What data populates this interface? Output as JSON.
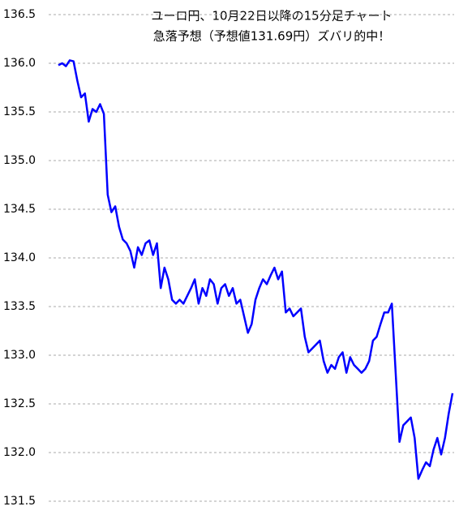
{
  "chart_data": {
    "type": "line",
    "title": [
      "ユーロ円、10月22日以降の15分足チャート",
      "急落予想（予想値131.69円）ズバリ的中！"
    ],
    "color": "#0000ff",
    "values": [
      135.98,
      136.0,
      135.97,
      136.03,
      136.02,
      135.82,
      135.65,
      135.69,
      135.4,
      135.53,
      135.5,
      135.58,
      135.48,
      134.65,
      134.47,
      134.53,
      134.32,
      134.19,
      134.15,
      134.07,
      133.9,
      134.11,
      134.03,
      134.15,
      134.18,
      134.03,
      134.15,
      133.69,
      133.9,
      133.78,
      133.57,
      133.53,
      133.57,
      133.53,
      133.61,
      133.69,
      133.78,
      133.53,
      133.69,
      133.61,
      133.78,
      133.73,
      133.53,
      133.69,
      133.73,
      133.61,
      133.69,
      133.53,
      133.57,
      133.4,
      133.23,
      133.32,
      133.57,
      133.69,
      133.78,
      133.73,
      133.82,
      133.9,
      133.78,
      133.86,
      133.44,
      133.48,
      133.4,
      133.44,
      133.48,
      133.19,
      133.03,
      133.07,
      133.11,
      133.15,
      132.94,
      132.82,
      132.9,
      132.86,
      132.98,
      133.03,
      132.82,
      132.98,
      132.9,
      132.86,
      132.82,
      132.86,
      132.94,
      133.15,
      133.19,
      133.32,
      133.44,
      133.44,
      133.53,
      132.82,
      132.11,
      132.28,
      132.32,
      132.36,
      132.15,
      131.73,
      131.82,
      131.9,
      131.86,
      132.03,
      132.15,
      131.98,
      132.15,
      132.4,
      132.61
    ],
    "ylim": [
      131.5,
      136.5
    ],
    "yticks": [
      136.5,
      {
        "value": 136,
        "label": "136.0"
      },
      135.5,
      {
        "value": 135,
        "label": "135.0"
      },
      134.5,
      {
        "value": 134,
        "label": "134.0"
      },
      133.5,
      {
        "value": 133,
        "label": "133.0"
      },
      132.5,
      {
        "value": 132,
        "label": "132.0"
      },
      131.5
    ],
    "grid": true
  }
}
